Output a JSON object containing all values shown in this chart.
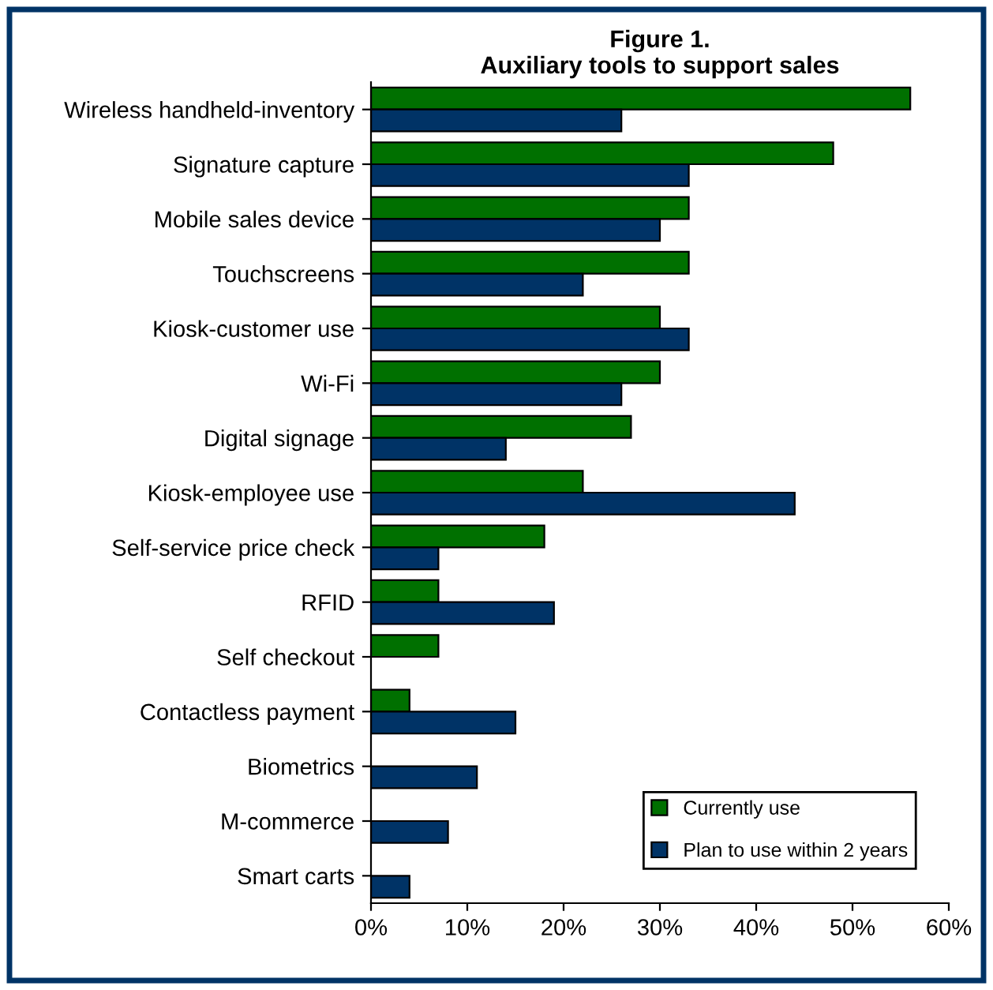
{
  "chart_data": {
    "type": "bar",
    "orientation": "horizontal",
    "title": "Figure 1.\nAuxiliary tools to support sales",
    "categories": [
      "Wireless handheld-inventory",
      "Signature capture",
      "Mobile sales device",
      "Touchscreens",
      "Kiosk-customer use",
      "Wi-Fi",
      "Digital signage",
      "Kiosk-employee use",
      "Self-service price check",
      "RFID",
      "Self checkout",
      "Contactless payment",
      "Biometrics",
      "M-commerce",
      "Smart carts"
    ],
    "series": [
      {
        "name": "Currently use",
        "color": "#007000",
        "values": [
          56,
          48,
          33,
          33,
          30,
          30,
          27,
          22,
          18,
          7,
          7,
          4,
          null,
          null,
          null
        ]
      },
      {
        "name": "Plan to use within 2 years",
        "color": "#003366",
        "values": [
          26,
          33,
          30,
          22,
          33,
          26,
          14,
          44,
          7,
          19,
          null,
          15,
          11,
          8,
          4
        ]
      }
    ],
    "xlim": [
      0,
      60
    ],
    "xticks": [
      {
        "value": 0,
        "label": "0%"
      },
      {
        "value": 10,
        "label": "10%"
      },
      {
        "value": 20,
        "label": "20%"
      },
      {
        "value": 30,
        "label": "30%"
      },
      {
        "value": 40,
        "label": "40%"
      },
      {
        "value": 50,
        "label": "50%"
      },
      {
        "value": 60,
        "label": "60%"
      }
    ],
    "grid": false,
    "legend": "bottom right"
  }
}
